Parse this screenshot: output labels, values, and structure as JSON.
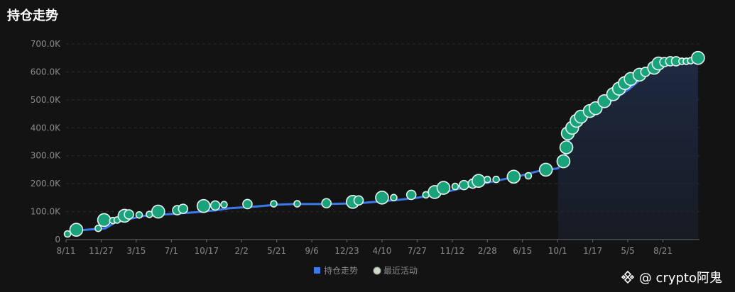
{
  "title": "持仓走势",
  "watermark": {
    "logo_text": "Binance",
    "text": "@ crypto阿鬼"
  },
  "colors": {
    "background": "#131313",
    "line": "#3b7ae8",
    "bubble_fill": "#1aa37a",
    "bubble_stroke": "#e6f5ef",
    "area_top": "#1f2b44",
    "grid": "#2e2e2e",
    "axis_text": "#8a8a8a"
  },
  "chart_data": {
    "type": "line",
    "title": "",
    "xlabel": "",
    "ylabel": "",
    "ylim": [
      0,
      700000
    ],
    "y_ticks": [
      "0",
      "100.0K",
      "200.0K",
      "300.0K",
      "400.0K",
      "500.0K",
      "600.0K",
      "700.0K"
    ],
    "x_ticks": [
      "8/11",
      "11/27",
      "3/15",
      "7/1",
      "10/17",
      "2/2",
      "5/21",
      "9/6",
      "12/23",
      "4/10",
      "7/27",
      "11/12",
      "2/28",
      "6/15",
      "10/1",
      "1/17",
      "5/5",
      "8/21"
    ],
    "legend": {
      "position": "bottom-center",
      "items": [
        {
          "name": "持仓走势",
          "marker": "square"
        },
        {
          "name": "最近活动",
          "marker": "circle"
        }
      ]
    },
    "grid": true,
    "series": [
      {
        "name": "持仓走势",
        "kind": "line",
        "points": [
          [
            0,
            25000
          ],
          [
            0.6,
            35000
          ],
          [
            1.2,
            40000
          ],
          [
            1.5,
            60000
          ],
          [
            2.0,
            75000
          ],
          [
            2.4,
            85000
          ],
          [
            2.8,
            88000
          ],
          [
            3.3,
            92000
          ],
          [
            4.0,
            98000
          ],
          [
            4.6,
            105000
          ],
          [
            5.0,
            112000
          ],
          [
            5.8,
            118000
          ],
          [
            6.5,
            125000
          ],
          [
            7.0,
            127000
          ],
          [
            8.0,
            127000
          ],
          [
            9.0,
            130000
          ],
          [
            9.5,
            135000
          ],
          [
            10.2,
            142000
          ],
          [
            10.8,
            150000
          ],
          [
            11.3,
            160000
          ],
          [
            12.0,
            180000
          ],
          [
            12.6,
            195000
          ],
          [
            13.2,
            210000
          ],
          [
            14.0,
            230000
          ],
          [
            14.5,
            245000
          ],
          [
            15.1,
            255000
          ],
          [
            15.3,
            280000
          ],
          [
            15.4,
            330000
          ],
          [
            15.5,
            390000
          ],
          [
            15.8,
            430000
          ],
          [
            16.2,
            460000
          ],
          [
            16.8,
            500000
          ],
          [
            17.3,
            540000
          ],
          [
            17.8,
            590000
          ],
          [
            18.3,
            620000
          ],
          [
            18.6,
            635000
          ],
          [
            19.1,
            638000
          ],
          [
            19.4,
            650000
          ]
        ]
      },
      {
        "name": "最近活动",
        "kind": "bubbles",
        "points": [
          {
            "x": 0.05,
            "y": 20000,
            "r": 1
          },
          {
            "x": 0.35,
            "y": 35000,
            "r": 3
          },
          {
            "x": 1.1,
            "y": 40000,
            "r": 1
          },
          {
            "x": 1.3,
            "y": 70000,
            "r": 3
          },
          {
            "x": 1.6,
            "y": 68000,
            "r": 1
          },
          {
            "x": 1.75,
            "y": 70000,
            "r": 1
          },
          {
            "x": 2.0,
            "y": 85000,
            "r": 3
          },
          {
            "x": 2.15,
            "y": 90000,
            "r": 2
          },
          {
            "x": 2.5,
            "y": 88000,
            "r": 1
          },
          {
            "x": 2.85,
            "y": 90000,
            "r": 1
          },
          {
            "x": 3.15,
            "y": 100000,
            "r": 3
          },
          {
            "x": 3.8,
            "y": 105000,
            "r": 2
          },
          {
            "x": 4.0,
            "y": 110000,
            "r": 2
          },
          {
            "x": 4.7,
            "y": 120000,
            "r": 3
          },
          {
            "x": 5.1,
            "y": 122000,
            "r": 2
          },
          {
            "x": 5.4,
            "y": 125000,
            "r": 1
          },
          {
            "x": 6.2,
            "y": 127000,
            "r": 2
          },
          {
            "x": 7.1,
            "y": 128000,
            "r": 1
          },
          {
            "x": 7.9,
            "y": 128000,
            "r": 1
          },
          {
            "x": 8.9,
            "y": 130000,
            "r": 2
          },
          {
            "x": 9.8,
            "y": 135000,
            "r": 3
          },
          {
            "x": 10.0,
            "y": 140000,
            "r": 2
          },
          {
            "x": 10.8,
            "y": 150000,
            "r": 3
          },
          {
            "x": 11.2,
            "y": 150000,
            "r": 1
          },
          {
            "x": 11.8,
            "y": 160000,
            "r": 2
          },
          {
            "x": 12.3,
            "y": 160000,
            "r": 1
          },
          {
            "x": 12.6,
            "y": 170000,
            "r": 3
          },
          {
            "x": 12.9,
            "y": 185000,
            "r": 3
          },
          {
            "x": 13.3,
            "y": 190000,
            "r": 1
          },
          {
            "x": 13.6,
            "y": 195000,
            "r": 2
          },
          {
            "x": 13.9,
            "y": 200000,
            "r": 2
          },
          {
            "x": 14.1,
            "y": 210000,
            "r": 3
          },
          {
            "x": 14.4,
            "y": 215000,
            "r": 1
          },
          {
            "x": 14.7,
            "y": 215000,
            "r": 1
          },
          {
            "x": 15.3,
            "y": 225000,
            "r": 3
          },
          {
            "x": 15.8,
            "y": 228000,
            "r": 1
          },
          {
            "x": 16.4,
            "y": 250000,
            "r": 3
          },
          {
            "x": 17.0,
            "y": 280000,
            "r": 3
          },
          {
            "x": 17.1,
            "y": 330000,
            "r": 3
          },
          {
            "x": 17.15,
            "y": 380000,
            "r": 3
          },
          {
            "x": 17.3,
            "y": 400000,
            "r": 3
          },
          {
            "x": 17.45,
            "y": 425000,
            "r": 3
          },
          {
            "x": 17.6,
            "y": 440000,
            "r": 3
          },
          {
            "x": 17.9,
            "y": 460000,
            "r": 3
          },
          {
            "x": 18.1,
            "y": 470000,
            "r": 3
          },
          {
            "x": 18.4,
            "y": 495000,
            "r": 3
          },
          {
            "x": 18.7,
            "y": 520000,
            "r": 3
          },
          {
            "x": 18.9,
            "y": 540000,
            "r": 3
          },
          {
            "x": 19.1,
            "y": 560000,
            "r": 3
          },
          {
            "x": 19.3,
            "y": 575000,
            "r": 3
          },
          {
            "x": 19.6,
            "y": 590000,
            "r": 3
          },
          {
            "x": 19.8,
            "y": 600000,
            "r": 2
          },
          {
            "x": 20.1,
            "y": 615000,
            "r": 3
          },
          {
            "x": 20.25,
            "y": 630000,
            "r": 3
          },
          {
            "x": 20.45,
            "y": 635000,
            "r": 2
          },
          {
            "x": 20.65,
            "y": 638000,
            "r": 2
          },
          {
            "x": 20.85,
            "y": 638000,
            "r": 2
          },
          {
            "x": 21.05,
            "y": 638000,
            "r": 1
          },
          {
            "x": 21.2,
            "y": 638000,
            "r": 1
          },
          {
            "x": 21.35,
            "y": 640000,
            "r": 1
          },
          {
            "x": 21.6,
            "y": 650000,
            "r": 3
          }
        ]
      }
    ]
  }
}
